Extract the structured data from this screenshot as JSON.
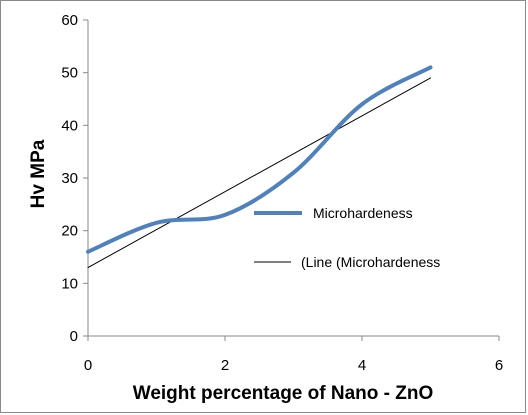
{
  "chart_data": {
    "type": "line",
    "title": "",
    "xlabel": "Weight percentage of Nano - ZnO",
    "ylabel": "Hv  MPa",
    "xlim": [
      0,
      6
    ],
    "ylim": [
      0,
      60
    ],
    "xticks": [
      "0",
      "2",
      "4",
      "6"
    ],
    "yticks": [
      "0",
      "10",
      "20",
      "30",
      "40",
      "50",
      "60"
    ],
    "grid": false,
    "legend_position": "right",
    "series": [
      {
        "name": "Microhardeness",
        "style": "smooth",
        "color": "#4f81bd",
        "x": [
          0,
          1,
          2,
          3,
          4,
          5
        ],
        "y": [
          16,
          21.5,
          23,
          31,
          44,
          51
        ]
      },
      {
        "name": "(Line (Microhardeness",
        "style": "linear-trend",
        "color": "#000000",
        "x": [
          0,
          5
        ],
        "y": [
          13,
          49
        ]
      }
    ]
  }
}
